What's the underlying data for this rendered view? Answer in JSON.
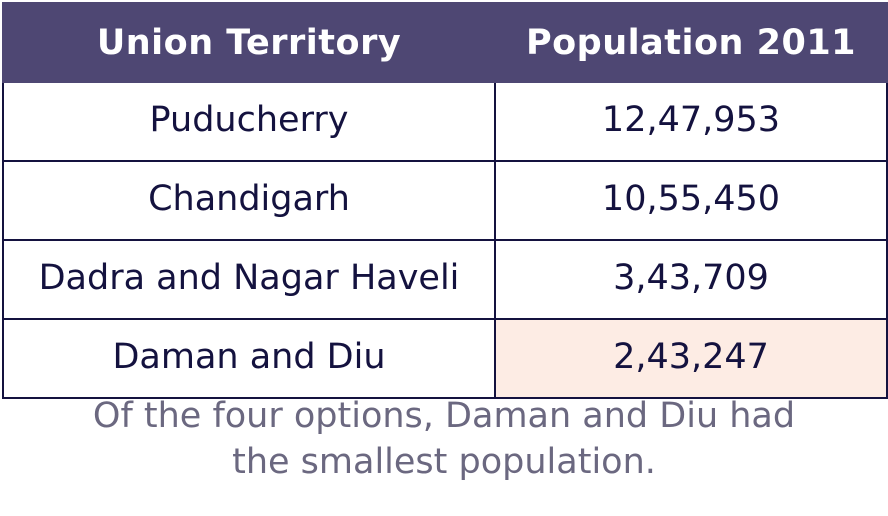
{
  "table": {
    "headers": [
      "Union Territory",
      "Population 2011"
    ],
    "rows": [
      [
        "Puducherry",
        "12,47,953"
      ],
      [
        "Chandigarh",
        "10,55,450"
      ],
      [
        "Dadra and Nagar Haveli",
        "3,43,709"
      ],
      [
        "Daman and Diu",
        "2,43,247"
      ]
    ],
    "highlight_color": "#fdece4",
    "header_color": "#4e4773"
  },
  "caption": {
    "line1": "Of the four options, Daman and Diu had",
    "line2": "the smallest population."
  }
}
